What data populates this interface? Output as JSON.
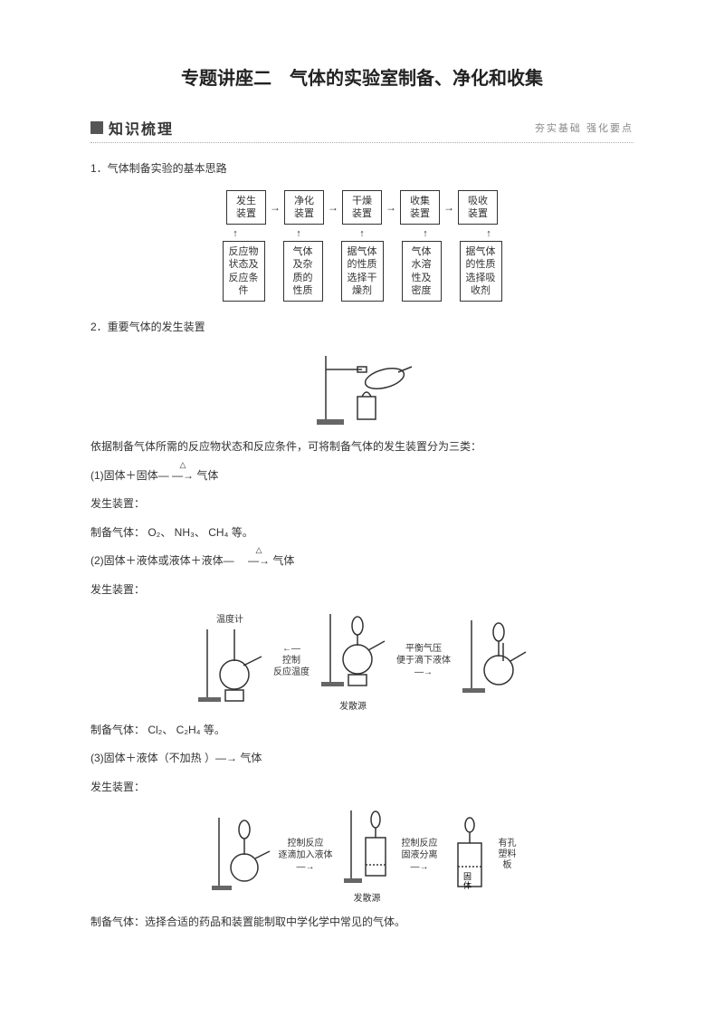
{
  "title": "专题讲座二　气体的实验室制备、净化和收集",
  "section": {
    "heading": "知识梳理",
    "subtitle": "夯实基础 强化要点"
  },
  "item1": {
    "heading": "1．气体制备实验的基本思路",
    "flow_top": [
      "发生\n装置",
      "净化\n装置",
      "干燥\n装置",
      "收集\n装置",
      "吸收\n装置"
    ],
    "flow_bottom": [
      "反应物\n状态及\n反应条\n件",
      "气体\n及杂\n质的\n性质",
      "据气体\n的性质\n选择干\n燥剂",
      "气体\n水溶\n性及\n密度",
      "据气体\n的性质\n选择吸\n收剂"
    ]
  },
  "item2": {
    "heading": "2．重要气体的发生装置",
    "intro": "依据制备气体所需的反应物状态和反应条件，可将制备气体的发生装置分为三类：",
    "type1_title": "(1)固体＋固体—",
    "type1_arrow": "—→",
    "type1_end": "气体",
    "apparatus_label": "发生装置：",
    "type1_gases": "制备气体： O₂、 NH₃、 CH₄ 等。",
    "type2_title": "(2)固体＋液体或液体＋液体—　",
    "type2_arrow": "—→",
    "type2_end": "气体",
    "type2_labels": {
      "temp": "温度计",
      "left_arrow": "控制\n反应温度",
      "right_arrow": "平衡气压\n便于滴下液体",
      "source": "发散源"
    },
    "type2_gases": "制备气体： Cl₂、 C₂H₄ 等。",
    "type3_title": "(3)固体＋液体（不加热 ）—→ 气体",
    "type3_labels": {
      "left_arrow": "控制反应\n逐滴加入液体",
      "mid_arrow": "控制反应\n固液分离",
      "solid": "固\n体",
      "plate": "有孔\n塑料\n板",
      "source": "发散源"
    },
    "final": "制备气体：选择合适的药品和装置能制取中学化学中常见的气体。"
  },
  "styling": {
    "background_color": "#ffffff",
    "text_color": "#333333",
    "border_color": "#333333",
    "dotted_color": "#aaaaaa",
    "subtitle_color": "#888888",
    "title_fontsize": 20,
    "body_fontsize": 12,
    "box_fontsize": 11
  }
}
